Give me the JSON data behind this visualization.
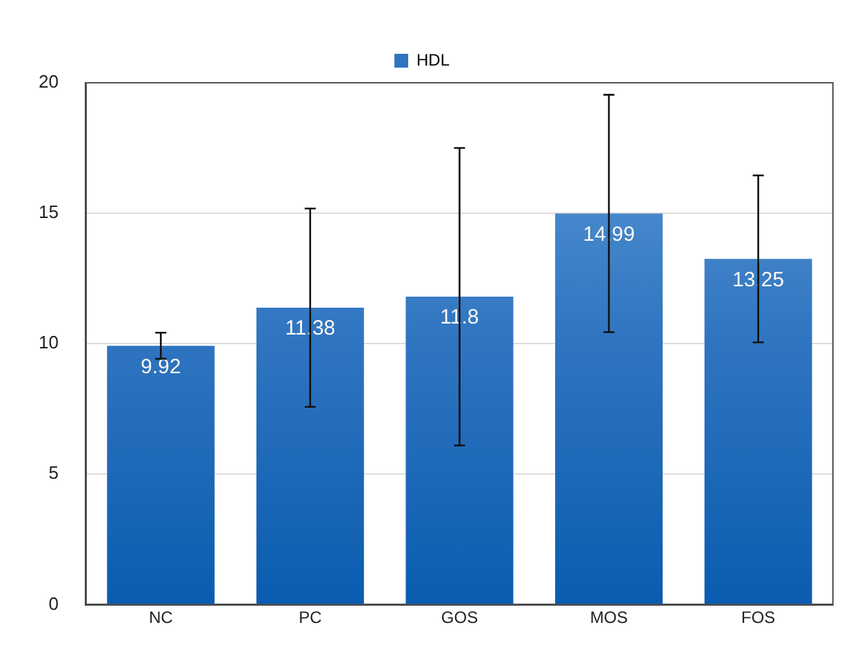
{
  "chart_data": {
    "type": "bar",
    "categories": [
      "NC",
      "PC",
      "GOS",
      "MOS",
      "FOS"
    ],
    "series": [
      {
        "name": "HDL",
        "color": "#2f74c0",
        "values": [
          9.92,
          11.38,
          11.8,
          14.99,
          13.25
        ],
        "errors": [
          0.5,
          3.8,
          5.7,
          4.55,
          3.2
        ]
      }
    ],
    "ylim": [
      0,
      20
    ],
    "yticks": [
      0,
      5,
      10,
      15,
      20
    ],
    "grid": "y",
    "legend": "top",
    "data_labels": true
  }
}
